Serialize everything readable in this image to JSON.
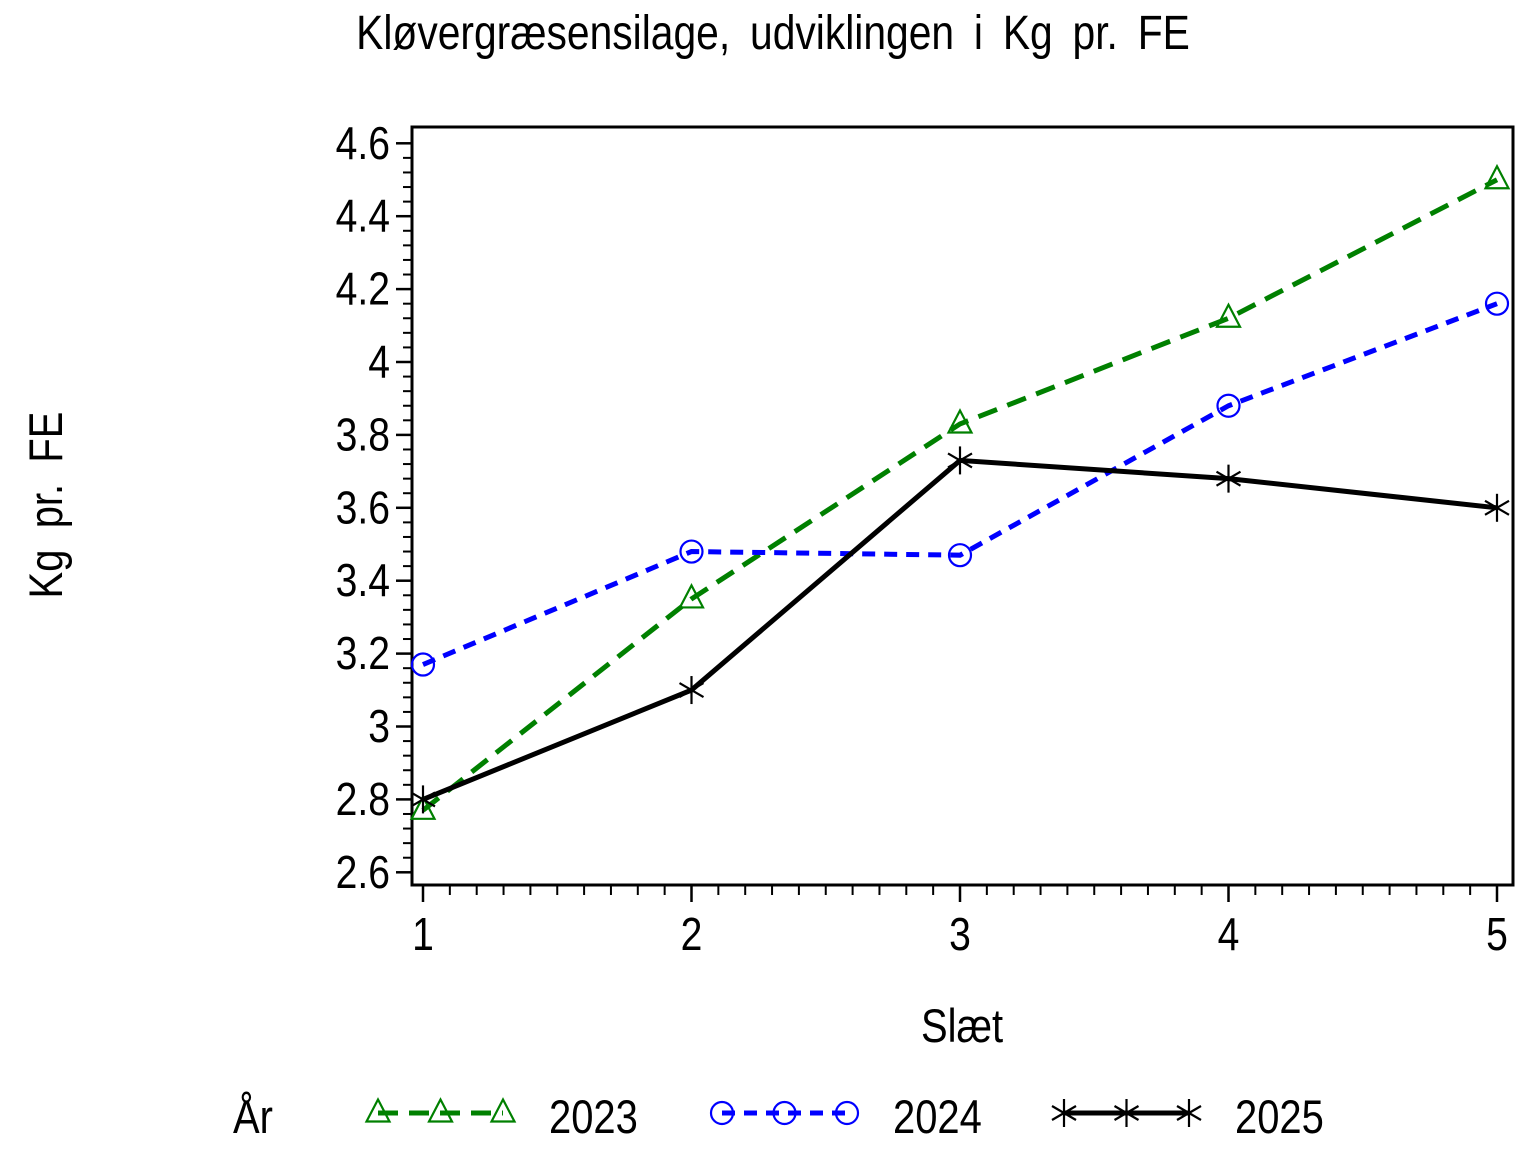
{
  "page": {
    "background": "#ffffff"
  },
  "chart_data": {
    "type": "line",
    "title": "Kløvergræsensilage, udviklingen i Kg pr. FE",
    "xlabel": "Slæt",
    "ylabel": "Kg pr. FE",
    "legend_title": "År",
    "legend_position": "bottom",
    "grid": false,
    "frame": true,
    "axis_color": "#000000",
    "xlim": [
      1,
      5
    ],
    "ylim": [
      2.6,
      4.6
    ],
    "x_tick_labels": [
      "1",
      "2",
      "3",
      "4",
      "5"
    ],
    "x_tick_values": [
      1,
      2,
      3,
      4,
      5
    ],
    "x_minor_step": 0.1,
    "y_tick_labels": [
      "2.6",
      "2.8",
      "3",
      "3.2",
      "3.4",
      "3.6",
      "3.8",
      "4",
      "4.2",
      "4.4",
      "4.6"
    ],
    "y_tick_values": [
      2.6,
      2.8,
      3,
      3.2,
      3.4,
      3.6,
      3.8,
      4,
      4.2,
      4.4,
      4.6
    ],
    "y_minor_step": 0.04,
    "categories": [
      1,
      2,
      3,
      4,
      5
    ],
    "series": [
      {
        "name": "2023",
        "color": "#008000",
        "line_style": "dashed",
        "dash_pattern": "20 11",
        "marker": "triangle",
        "values": [
          2.77,
          3.35,
          3.83,
          4.12,
          4.5
        ]
      },
      {
        "name": "2024",
        "color": "#0000ff",
        "line_style": "dashed",
        "dash_pattern": "13 9",
        "marker": "circle",
        "values": [
          3.17,
          3.48,
          3.47,
          3.88,
          4.16
        ]
      },
      {
        "name": "2025",
        "color": "#000000",
        "line_style": "solid",
        "dash_pattern": "",
        "marker": "asterisk",
        "values": [
          2.8,
          3.1,
          3.73,
          3.68,
          3.6
        ]
      }
    ]
  }
}
